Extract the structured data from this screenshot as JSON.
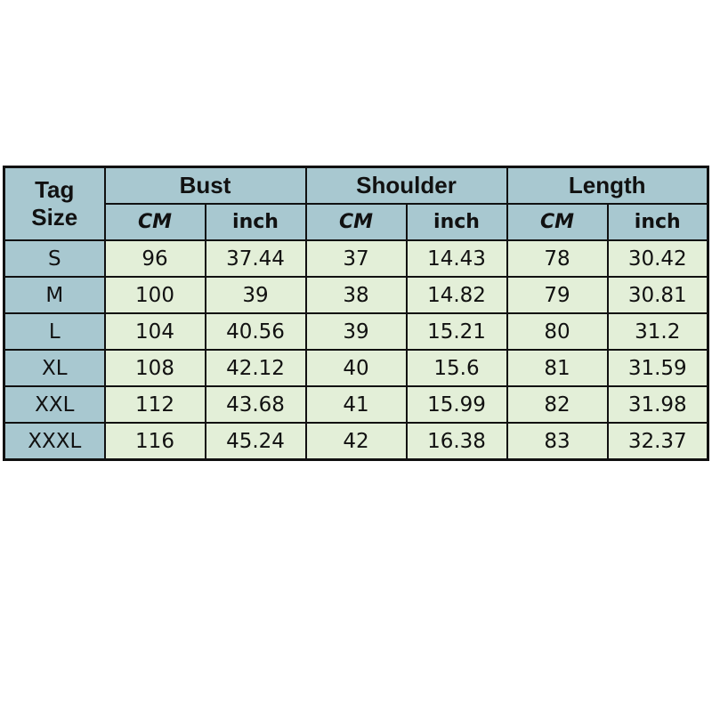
{
  "header": {
    "tag_size": [
      "Tag",
      "Size"
    ],
    "groups": [
      "Bust",
      "Shoulder",
      "Length"
    ],
    "units": [
      "CM",
      "inch",
      "CM",
      "inch",
      "CM",
      "inch"
    ]
  },
  "rows": [
    {
      "size": "S",
      "values": [
        "96",
        "37.44",
        "37",
        "14.43",
        "78",
        "30.42"
      ]
    },
    {
      "size": "M",
      "values": [
        "100",
        "39",
        "38",
        "14.82",
        "79",
        "30.81"
      ]
    },
    {
      "size": "L",
      "values": [
        "104",
        "40.56",
        "39",
        "15.21",
        "80",
        "31.2"
      ]
    },
    {
      "size": "XL",
      "values": [
        "108",
        "42.12",
        "40",
        "15.6",
        "81",
        "31.59"
      ]
    },
    {
      "size": "XXL",
      "values": [
        "112",
        "43.68",
        "41",
        "15.99",
        "82",
        "31.98"
      ]
    },
    {
      "size": "XXXL",
      "values": [
        "116",
        "45.24",
        "42",
        "16.38",
        "83",
        "32.37"
      ]
    }
  ],
  "colors": {
    "header_bg": "#a8c8d0",
    "cell_bg": "#e3efd8",
    "border": "#111111"
  }
}
